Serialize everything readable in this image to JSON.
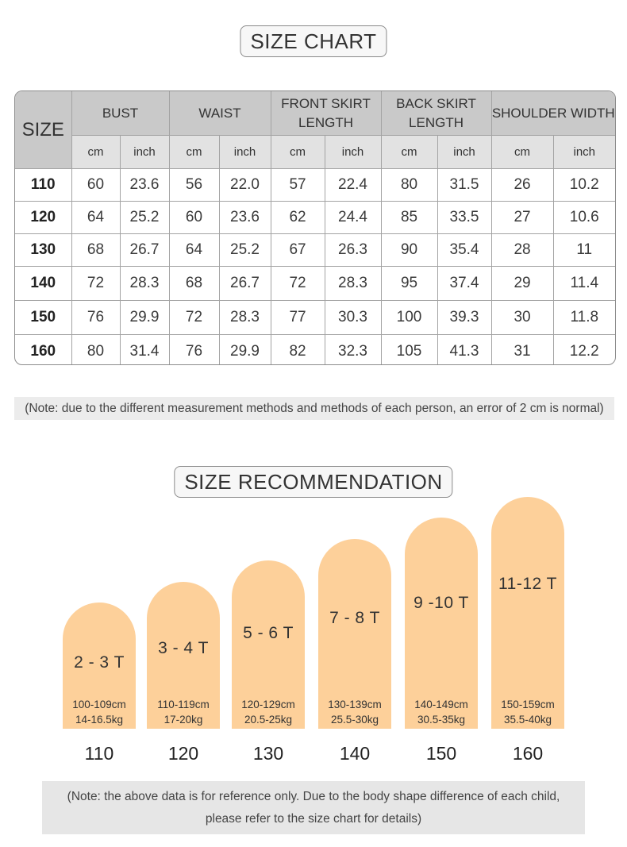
{
  "size_chart": {
    "title": "SIZE CHART",
    "size_header": "SIZE",
    "measurements": [
      "BUST",
      "WAIST",
      "FRONT SKIRT LENGTH",
      "BACK SKIRT LENGTH",
      "SHOULDER WIDTH"
    ],
    "units": [
      "cm",
      "inch"
    ],
    "rows": [
      {
        "size": "110",
        "values": [
          "60",
          "23.6",
          "56",
          "22.0",
          "57",
          "22.4",
          "80",
          "31.5",
          "26",
          "10.2"
        ]
      },
      {
        "size": "120",
        "values": [
          "64",
          "25.2",
          "60",
          "23.6",
          "62",
          "24.4",
          "85",
          "33.5",
          "27",
          "10.6"
        ]
      },
      {
        "size": "130",
        "values": [
          "68",
          "26.7",
          "64",
          "25.2",
          "67",
          "26.3",
          "90",
          "35.4",
          "28",
          "11"
        ]
      },
      {
        "size": "140",
        "values": [
          "72",
          "28.3",
          "68",
          "26.7",
          "72",
          "28.3",
          "95",
          "37.4",
          "29",
          "11.4"
        ]
      },
      {
        "size": "150",
        "values": [
          "76",
          "29.9",
          "72",
          "28.3",
          "77",
          "30.3",
          "100",
          "39.3",
          "30",
          "11.8"
        ]
      },
      {
        "size": "160",
        "values": [
          "80",
          "31.4",
          "76",
          "29.9",
          "82",
          "32.3",
          "105",
          "41.3",
          "31",
          "12.2"
        ]
      }
    ],
    "note": "(Note: due to the different measurement methods and methods of each person, an error of 2 cm is normal)"
  },
  "recommendation": {
    "title": "SIZE RECOMMENDATION",
    "bar_color": "#fdd09a",
    "items": [
      {
        "age": "2 - 3 T",
        "height": "100-109cm",
        "weight": "14-16.5kg",
        "size": "110"
      },
      {
        "age": "3 - 4 T",
        "height": "110-119cm",
        "weight": "17-20kg",
        "size": "120"
      },
      {
        "age": "5 - 6 T",
        "height": "120-129cm",
        "weight": "20.5-25kg",
        "size": "130"
      },
      {
        "age": "7 - 8 T",
        "height": "130-139cm",
        "weight": "25.5-30kg",
        "size": "140"
      },
      {
        "age": "9 -10 T",
        "height": "140-149cm",
        "weight": "30.5-35kg",
        "size": "150"
      },
      {
        "age": "11-12 T",
        "height": "150-159cm",
        "weight": "35.5-40kg",
        "size": "160"
      }
    ],
    "note_line1": "(Note: the above data is for reference only. Due to the body shape difference of each child,",
    "note_line2": "please refer to the size chart for details)"
  }
}
